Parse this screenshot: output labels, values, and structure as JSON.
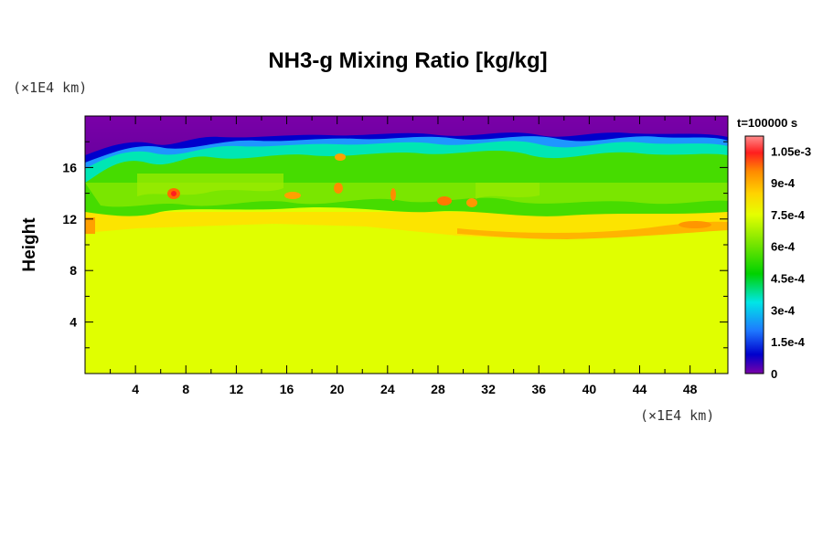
{
  "chart_data": {
    "type": "heatmap",
    "title": "NH3-g Mixing Ratio [kg/kg]",
    "ylabel": "Height",
    "unit_y": "(×1E4 km)",
    "unit_x": "(×1E4 km)",
    "time_label": "t=100000 s",
    "xlim": [
      0,
      51
    ],
    "ylim": [
      0,
      20
    ],
    "x_ticks": [
      "4",
      "8",
      "12",
      "16",
      "20",
      "24",
      "28",
      "32",
      "36",
      "40",
      "44",
      "48"
    ],
    "x_tick_values": [
      4,
      8,
      12,
      16,
      20,
      24,
      28,
      32,
      36,
      40,
      44,
      48
    ],
    "y_ticks": [
      "4",
      "8",
      "12",
      "16"
    ],
    "y_tick_values": [
      4,
      8,
      12,
      16
    ],
    "colorbar": {
      "range": [
        0,
        0.00112
      ],
      "labels": [
        "1.05e-3",
        "9e-4",
        "7.5e-4",
        "6e-4",
        "4.5e-4",
        "3e-4",
        "1.5e-4",
        "0"
      ],
      "label_values": [
        0.00105,
        0.0009,
        0.00075,
        0.0006,
        0.00045,
        0.0003,
        0.00015,
        0
      ]
    },
    "regions": [
      {
        "description": "uniform lower layer",
        "height_range": [
          0,
          11
        ],
        "value": 0.00075
      },
      {
        "description": "turbulent mixing layer",
        "height_range": [
          11,
          17.5
        ],
        "value_range": [
          0.0004,
          0.00095
        ]
      },
      {
        "description": "depleted upper layer",
        "height_range": [
          17,
          20
        ],
        "value": 0
      }
    ],
    "grid": false
  }
}
